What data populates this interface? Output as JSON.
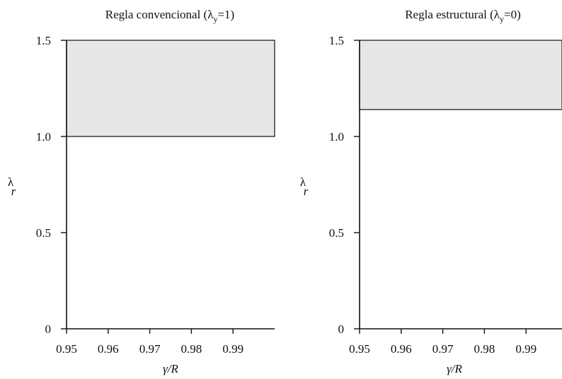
{
  "chart_data": [
    {
      "type": "area",
      "title": "Regla convencional (λ",
      "title_sub": "y",
      "title_end": "=1)",
      "xlabel": "γ/R",
      "ylabel": "λ",
      "ylabel_sub": "r",
      "xlim": [
        0.95,
        1.0
      ],
      "ylim": [
        0,
        1.5
      ],
      "xticks": [
        0.95,
        0.96,
        0.97,
        0.98,
        0.99
      ],
      "xtick_labels": [
        "0.95",
        "0.96",
        "0.97",
        "0.98",
        "0.99"
      ],
      "yticks": [
        0,
        0.5,
        1.0,
        1.5
      ],
      "ytick_labels": [
        "0",
        "0.5",
        "1.0",
        "1.5"
      ],
      "shaded_region": {
        "x": [
          0.95,
          1.0
        ],
        "y_from": 1.0,
        "y_to": 1.5,
        "color": "#e6e7e8"
      }
    },
    {
      "type": "area",
      "title": "Regla estructural (λ",
      "title_sub": "y",
      "title_end": "=0)",
      "xlabel": "γ/R",
      "ylabel": "λ",
      "ylabel_sub": "r",
      "xlim": [
        0.95,
        1.0
      ],
      "ylim": [
        0,
        1.5
      ],
      "xticks": [
        0.95,
        0.96,
        0.97,
        0.98,
        0.99
      ],
      "xtick_labels": [
        "0.95",
        "0.96",
        "0.97",
        "0.98",
        "0.99"
      ],
      "yticks": [
        0,
        0.5,
        1.0,
        1.5
      ],
      "ytick_labels": [
        "0",
        "0.5",
        "1.0",
        "1.5"
      ],
      "shaded_region": {
        "x": [
          0.95,
          1.0
        ],
        "y_from": 1.14,
        "y_to": 1.5,
        "color": "#e6e7e8"
      }
    }
  ]
}
